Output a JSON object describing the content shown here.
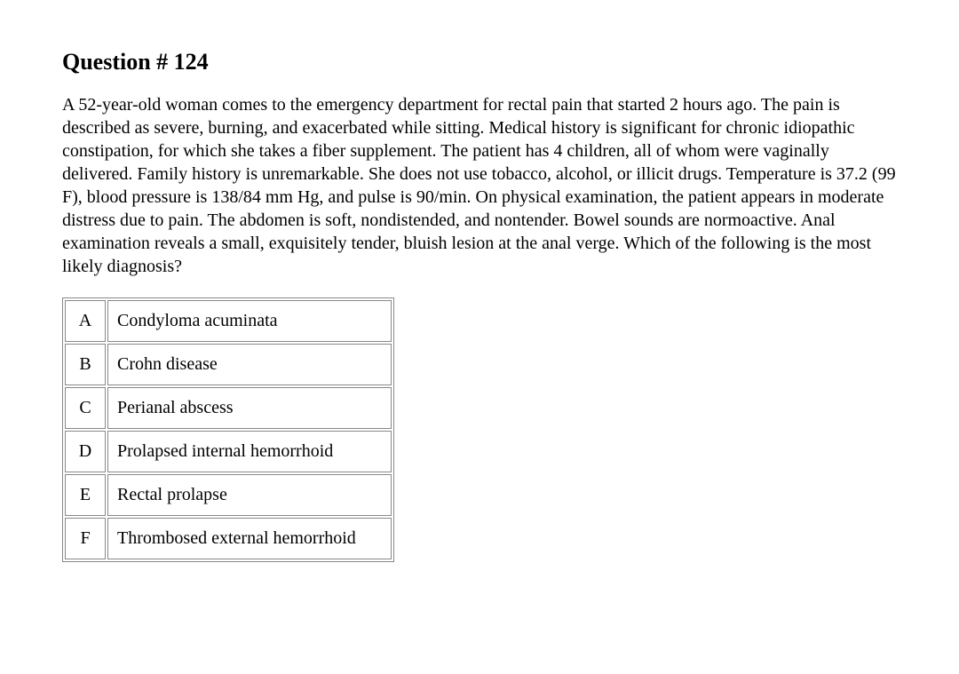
{
  "title": "Question # 124",
  "body": "A 52-year-old woman comes to the emergency department for rectal pain that started 2 hours ago.  The pain is described as severe, burning, and exacerbated while sitting.  Medical history is significant for chronic idiopathic constipation, for which she takes a fiber supplement.  The patient has 4 children, all of whom were vaginally delivered.  Family history is unremarkable.  She does not use tobacco, alcohol, or illicit drugs.  Temperature is 37.2 (99 F), blood pressure is 138/84 mm Hg, and pulse is 90/min.  On physical examination, the patient appears in moderate distress due to pain.  The abdomen is soft, nondistended, and nontender.  Bowel sounds are normoactive.  Anal examination reveals a small, exquisitely tender, bluish lesion at the anal verge.  Which of the following is the most likely diagnosis?",
  "options": [
    {
      "letter": "A",
      "text": "Condyloma acuminata"
    },
    {
      "letter": "B",
      "text": "Crohn disease"
    },
    {
      "letter": "C",
      "text": "Perianal abscess"
    },
    {
      "letter": "D",
      "text": "Prolapsed internal hemorrhoid"
    },
    {
      "letter": "E",
      "text": "Rectal prolapse"
    },
    {
      "letter": "F",
      "text": "Thrombosed external hemorrhoid"
    }
  ],
  "styling": {
    "background_color": "#ffffff",
    "text_color": "#000000",
    "border_color": "#888888",
    "font_family": "Times New Roman",
    "title_fontsize": 26,
    "body_fontsize": 20,
    "option_fontsize": 20,
    "cell_padding": 11,
    "letter_col_width": 46,
    "text_col_min_width": 320
  }
}
